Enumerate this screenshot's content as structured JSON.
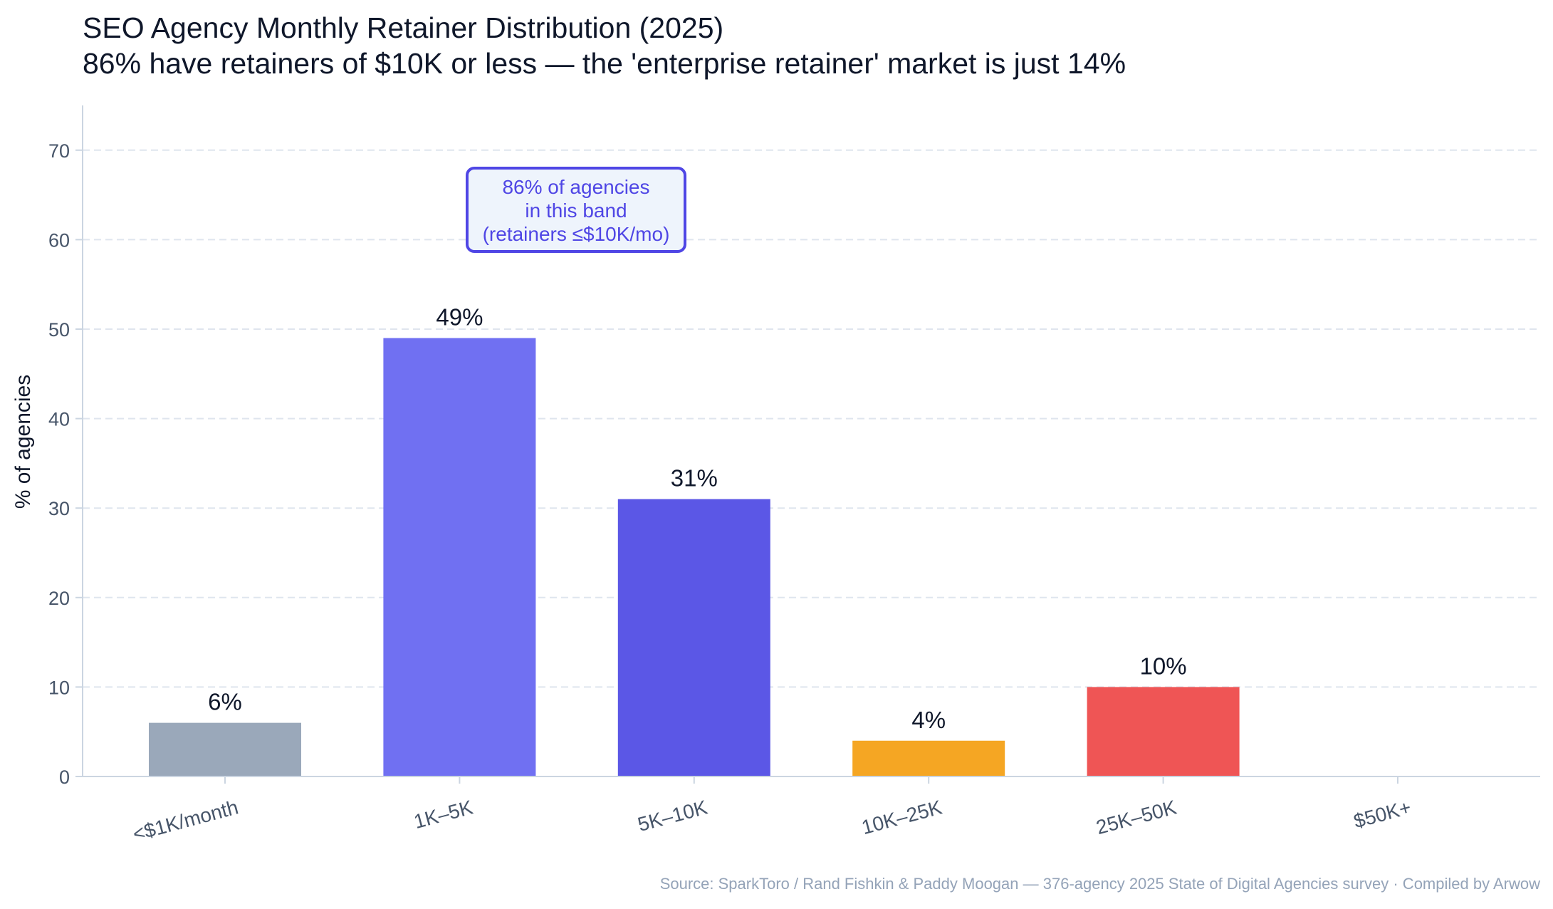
{
  "title": "SEO Agency Monthly Retainer Distribution (2025)",
  "subtitle": "86% have retainers of $10K or less — the 'enterprise retainer' market is just 14%",
  "source": "Source: SparkToro / Rand Fishkin & Paddy Moogan — 376-agency 2025 State of Digital Agencies survey · Compiled by Arwow",
  "annotation": {
    "line1": "86% of agencies",
    "line2": "in this band",
    "line3": "(retainers ≤$10K/mo)"
  },
  "colors": {
    "bars": [
      "#9aa8ba",
      "#7070f2",
      "#5b57e6",
      "#f5a623",
      "#ef5555",
      "#9aa8ba"
    ],
    "annotation": "#4f46e5",
    "grid": "#dfe5ee",
    "axis": "#cbd5e1",
    "tick_text": "#475569"
  },
  "chart_data": {
    "type": "bar",
    "categories": [
      "<$1K/month",
      "1K–5K",
      "5K–10K",
      "10K–25K",
      "25K–50K",
      "$50K+"
    ],
    "values": [
      6,
      49,
      31,
      4,
      10,
      0
    ],
    "value_labels": [
      "6%",
      "49%",
      "31%",
      "4%",
      "10%",
      ""
    ],
    "title": "SEO Agency Monthly Retainer Distribution (2025)",
    "xlabel": "",
    "ylabel": "% of agencies",
    "ylim": [
      0,
      75
    ],
    "yticks": [
      0,
      10,
      20,
      30,
      40,
      50,
      60,
      70
    ],
    "grid": true
  }
}
